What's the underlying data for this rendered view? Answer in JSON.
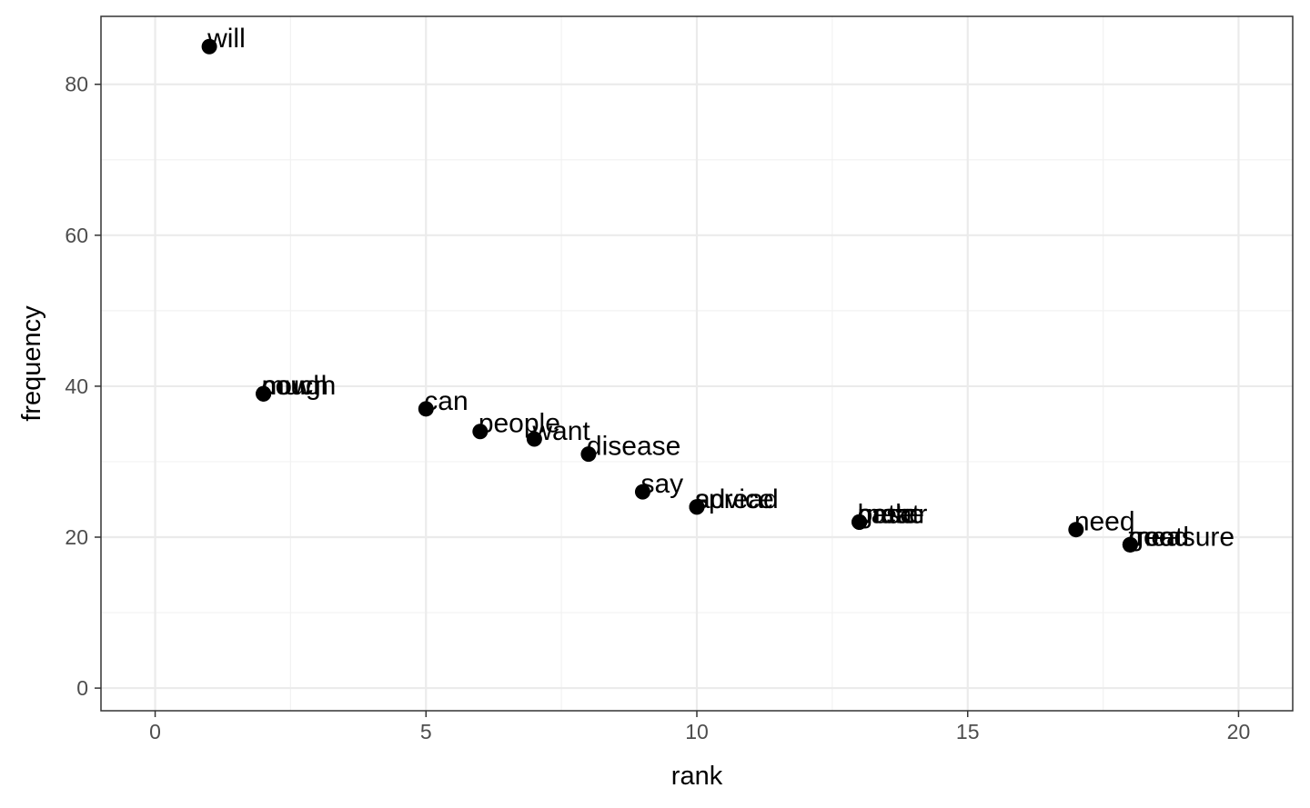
{
  "chart_data": {
    "type": "scatter",
    "title": "",
    "xlabel": "rank",
    "ylabel": "frequency",
    "xlim": [
      -1,
      21
    ],
    "ylim": [
      -3,
      89
    ],
    "x_ticks": [
      0,
      5,
      10,
      15,
      20
    ],
    "y_ticks": [
      0,
      20,
      40,
      60,
      80
    ],
    "grid": true,
    "legend": "none",
    "colors": {
      "point": "#000000",
      "grid_major": "#ebebeb",
      "grid_minor": "#f2f2f2",
      "panel_border": "#333333",
      "tick_text": "#4d4d4d"
    },
    "points": [
      {
        "label": "will",
        "x": 1,
        "y": 85
      },
      {
        "label": "cough",
        "x": 2,
        "y": 39
      },
      {
        "label": "much",
        "x": 2,
        "y": 39
      },
      {
        "label": "now",
        "x": 2,
        "y": 39
      },
      {
        "label": "can",
        "x": 5,
        "y": 37
      },
      {
        "label": "people",
        "x": 6,
        "y": 34
      },
      {
        "label": "want",
        "x": 7,
        "y": 33
      },
      {
        "label": "disease",
        "x": 8,
        "y": 31
      },
      {
        "label": "say",
        "x": 9,
        "y": 26
      },
      {
        "label": "advice",
        "x": 10,
        "y": 24
      },
      {
        "label": "spread",
        "x": 10,
        "y": 24
      },
      {
        "label": "better",
        "x": 13,
        "y": 22
      },
      {
        "label": "great",
        "x": 13,
        "y": 22
      },
      {
        "label": "make",
        "x": 13,
        "y": 22
      },
      {
        "label": "case",
        "x": 13,
        "y": 22
      },
      {
        "label": "need",
        "x": 17,
        "y": 21
      },
      {
        "label": "good",
        "x": 18,
        "y": 19
      },
      {
        "label": "treat",
        "x": 18,
        "y": 19
      },
      {
        "label": "measure",
        "x": 18,
        "y": 19
      }
    ]
  }
}
